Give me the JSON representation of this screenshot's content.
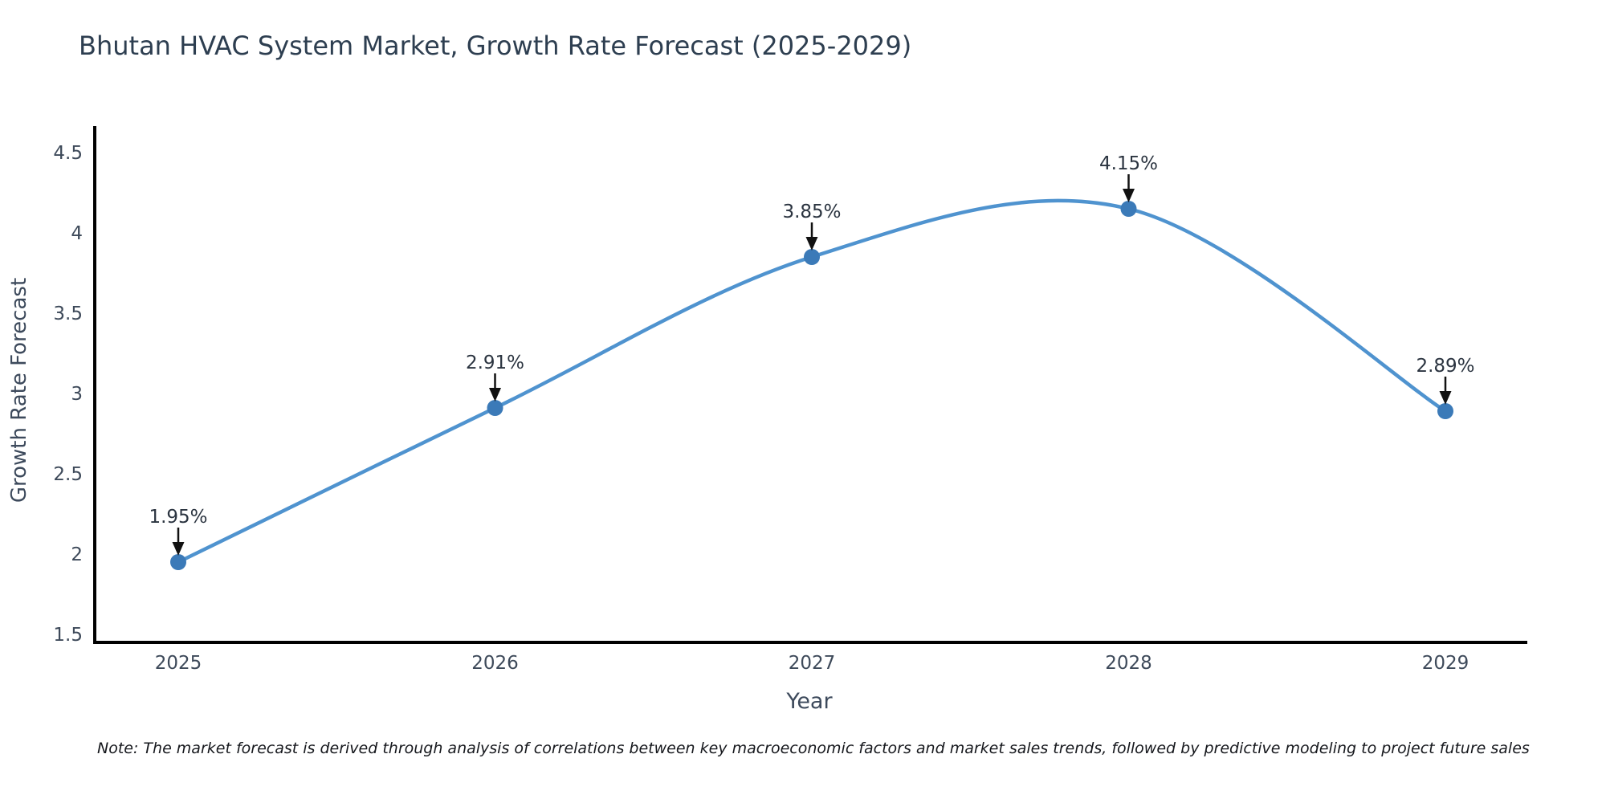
{
  "title": "Bhutan HVAC System Market, Growth Rate Forecast (2025-2029)",
  "note": "Note: The market forecast is derived through analysis of correlations between key macroeconomic factors and market sales trends, followed by predictive modeling to project future sales",
  "chart_data": {
    "type": "line",
    "title": "Bhutan HVAC System Market, Growth Rate Forecast (2025-2029)",
    "xlabel": "Year",
    "ylabel": "Growth Rate Forecast",
    "x": [
      2025,
      2026,
      2027,
      2028,
      2029
    ],
    "values": [
      1.95,
      2.91,
      3.85,
      4.15,
      2.89
    ],
    "point_labels": [
      "1.95%",
      "2.91%",
      "3.85%",
      "4.15%",
      "2.89%"
    ],
    "xtick_labels": [
      "2025",
      "2026",
      "2027",
      "2028",
      "2029"
    ],
    "ytick_values": [
      1.5,
      2,
      2.5,
      3,
      3.5,
      4,
      4.5
    ],
    "ytick_labels": [
      "1.5",
      "2",
      "2.5",
      "3",
      "3.5",
      "4",
      "4.5"
    ],
    "ylim": [
      1.5,
      4.5
    ],
    "grid": false,
    "line_shape": "spline",
    "legend": "none",
    "colors": {
      "line": "#4f93cf",
      "marker": "#3b7ab8",
      "axis_spine": "#000000",
      "arrow": "#111111",
      "title_text": "#2d3e50",
      "tick_text": "#3e4a5a",
      "axis_label_text": "#3d4a5c",
      "annotation_text": "#2b3440",
      "note_text": "#16181d",
      "background": "#ffffff"
    }
  }
}
